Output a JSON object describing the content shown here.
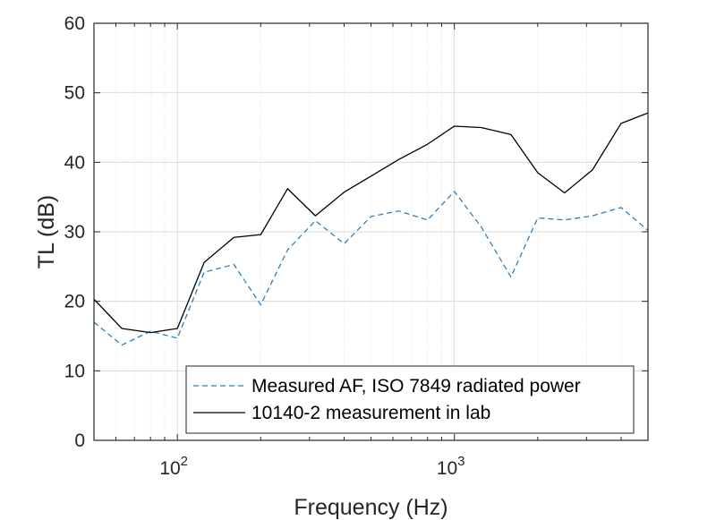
{
  "chart_data": {
    "type": "line",
    "title": "",
    "xlabel": "Frequency (Hz)",
    "ylabel": "TL (dB)",
    "x_scale": "log",
    "xlim": [
      50,
      5000
    ],
    "ylim": [
      0,
      60
    ],
    "y_ticks": [
      0,
      10,
      20,
      30,
      40,
      50,
      60
    ],
    "x_ticks": [
      {
        "value": 100,
        "base": "10",
        "exp": "2"
      },
      {
        "value": 1000,
        "base": "10",
        "exp": "3"
      }
    ],
    "grid": true,
    "legend_position": "bottom-right",
    "x": [
      50,
      63,
      80,
      100,
      125,
      160,
      200,
      250,
      315,
      400,
      500,
      630,
      800,
      1000,
      1250,
      1600,
      2000,
      2500,
      3150,
      4000,
      5000
    ],
    "series": [
      {
        "name": "Measured AF, ISO 7849 radiated power",
        "color": "#2f7fbd",
        "style": "dashed",
        "values": [
          17.0,
          13.7,
          15.7,
          14.7,
          24.2,
          25.3,
          19.5,
          27.4,
          31.6,
          28.3,
          32.2,
          33.0,
          31.7,
          35.8,
          30.7,
          23.5,
          32.0,
          31.7,
          32.3,
          33.5,
          30.2
        ]
      },
      {
        "name": "10140-2 measurement in lab",
        "color": "#000000",
        "style": "solid",
        "values": [
          20.3,
          16.1,
          15.5,
          16.1,
          25.6,
          29.2,
          29.6,
          36.2,
          32.3,
          35.7,
          38.0,
          40.4,
          42.6,
          45.2,
          45.0,
          44.0,
          38.5,
          35.6,
          38.9,
          45.6,
          47.1
        ]
      }
    ]
  }
}
